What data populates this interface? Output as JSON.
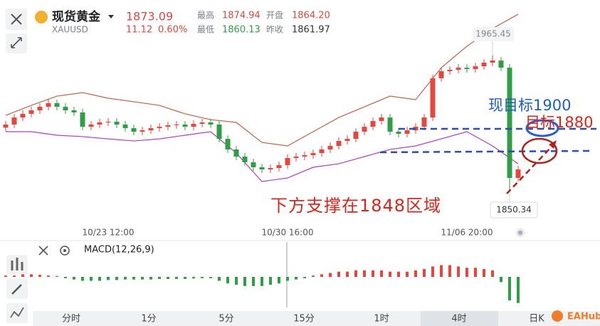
{
  "header": {
    "name": "现货黄金",
    "symbol": "XAUUSD",
    "price": "1873.09",
    "change": "11.12",
    "change_pct": "0.60%",
    "stats": [
      {
        "label": "最高",
        "value": "1874.94"
      },
      {
        "label": "开盘",
        "value": "1864.20"
      },
      {
        "label": "最低",
        "value": "1860.13"
      },
      {
        "label": "昨收",
        "value": "1861.97"
      }
    ]
  },
  "chart_data": {
    "type": "candlestick",
    "categories": [
      null,
      null,
      null,
      null,
      null,
      null,
      null,
      null,
      null,
      null,
      null,
      null,
      "10/23 12:00",
      null,
      null,
      null,
      null,
      null,
      null,
      null,
      null,
      null,
      null,
      null,
      null,
      null,
      null,
      null,
      null,
      null,
      null,
      null,
      null,
      "10/30 16:00",
      null,
      null,
      null,
      null,
      null,
      null,
      null,
      null,
      null,
      null,
      null,
      null,
      null,
      null,
      null,
      null,
      null,
      null,
      null,
      null,
      "11/06 20:00",
      null,
      null,
      null,
      null,
      null,
      null
    ],
    "open": [
      1904.0,
      1906.7,
      1912.7,
      1915.8,
      1918.8,
      1921.8,
      1924.9,
      1921.8,
      1918.8,
      1917.0,
      1904.8,
      1906.7,
      1908.5,
      1909.1,
      1906.7,
      1903.6,
      1900.6,
      1901.8,
      1903.6,
      1904.8,
      1906.1,
      1906.7,
      1904.8,
      1907.3,
      1908.5,
      1906.7,
      1894.5,
      1885.5,
      1879.4,
      1874.6,
      1870.3,
      1868.5,
      1869.7,
      1872.1,
      1878.2,
      1879.4,
      1880.6,
      1882.4,
      1885.5,
      1888.5,
      1892.7,
      1894.5,
      1900.6,
      1904.8,
      1909.7,
      1912.7,
      1900.6,
      1898.8,
      1901.8,
      1904.8,
      1912.7,
      1946.1,
      1952.1,
      1953.3,
      1955.1,
      1953.9,
      1956.3,
      1959.4,
      1961.2,
      1955.1,
      1861.2
    ],
    "high": [
      1909.7,
      1915.7,
      1918.8,
      1921.8,
      1924.8,
      1927.9,
      1927.9,
      1924.8,
      1921.8,
      1920.0,
      1909.7,
      1911.5,
      1912.1,
      1912.1,
      1909.7,
      1906.6,
      1904.8,
      1906.6,
      1907.8,
      1909.1,
      1909.7,
      1909.7,
      1910.3,
      1911.5,
      1911.5,
      1909.7,
      1897.5,
      1888.5,
      1882.4,
      1877.6,
      1873.3,
      1872.7,
      1875.1,
      1881.2,
      1882.4,
      1883.6,
      1885.4,
      1888.5,
      1891.5,
      1895.7,
      1897.5,
      1903.6,
      1907.8,
      1912.7,
      1915.7,
      1915.7,
      1903.6,
      1904.8,
      1907.8,
      1915.7,
      1949.1,
      1955.1,
      1956.3,
      1958.1,
      1958.1,
      1959.3,
      1962.4,
      1965.45,
      1964.2,
      1958.1,
      1871.5
    ],
    "low": [
      1901.0,
      1903.7,
      1909.7,
      1912.8,
      1915.8,
      1918.8,
      1918.8,
      1915.8,
      1914.0,
      1901.8,
      1901.8,
      1903.7,
      1905.5,
      1903.7,
      1900.6,
      1897.6,
      1897.6,
      1898.8,
      1900.6,
      1901.8,
      1903.1,
      1901.8,
      1901.8,
      1904.3,
      1903.7,
      1891.5,
      1882.5,
      1876.4,
      1871.6,
      1867.3,
      1865.5,
      1865.5,
      1866.7,
      1869.1,
      1875.2,
      1876.4,
      1877.6,
      1879.4,
      1882.5,
      1885.5,
      1889.7,
      1891.5,
      1897.6,
      1901.8,
      1906.7,
      1897.6,
      1895.8,
      1895.8,
      1898.8,
      1901.8,
      1909.7,
      1943.1,
      1949.1,
      1950.3,
      1950.9,
      1950.9,
      1953.3,
      1956.4,
      1952.1,
      1850.34,
      1858.2
    ],
    "close": [
      1906.7,
      1912.7,
      1915.8,
      1918.8,
      1921.8,
      1924.9,
      1921.8,
      1918.8,
      1917.0,
      1904.8,
      1906.7,
      1908.5,
      1909.1,
      1906.7,
      1903.6,
      1900.6,
      1901.8,
      1903.6,
      1904.8,
      1906.1,
      1906.7,
      1904.8,
      1907.3,
      1908.5,
      1906.7,
      1894.5,
      1885.5,
      1879.4,
      1874.6,
      1870.3,
      1868.5,
      1869.7,
      1872.1,
      1878.2,
      1879.4,
      1880.6,
      1882.4,
      1885.5,
      1888.5,
      1892.7,
      1894.5,
      1900.6,
      1904.8,
      1909.7,
      1912.7,
      1900.6,
      1898.8,
      1901.8,
      1904.8,
      1912.7,
      1946.1,
      1952.1,
      1953.3,
      1955.1,
      1953.9,
      1956.3,
      1959.4,
      1961.2,
      1955.1,
      1861.2,
      1868.5
    ],
    "up_color": "#e5463d",
    "down_color": "#2f9e44",
    "ylim": [
      1820,
      2006.7
    ],
    "bands": [
      {
        "color": "#c0634a",
        "x": [
          0,
          3,
          6,
          9,
          12,
          15,
          18,
          21,
          24,
          27,
          30,
          33,
          36,
          39,
          42,
          45,
          48,
          51,
          54,
          57,
          60
        ],
        "values": [
          1914.5,
          1923.0,
          1930.9,
          1933.9,
          1929.1,
          1926.1,
          1923.0,
          1915.8,
          1910.9,
          1908.5,
          1891.5,
          1888.5,
          1900.6,
          1912.7,
          1921.8,
          1930.9,
          1927.9,
          1955.1,
          1973.4,
          1988.5,
          2000.6
        ]
      },
      {
        "color": "#b23fc0",
        "x": [
          0,
          3,
          6,
          9,
          12,
          15,
          18,
          21,
          24,
          27,
          30,
          33,
          36,
          39,
          42,
          45,
          48,
          51,
          54,
          57,
          60
        ],
        "values": [
          1900.6,
          1900.6,
          1897.6,
          1896.4,
          1894.5,
          1892.7,
          1894.5,
          1897.6,
          1900.6,
          1882.4,
          1858.2,
          1861.2,
          1870.3,
          1873.3,
          1879.4,
          1885.5,
          1888.5,
          1894.5,
          1900.6,
          1888.5,
          1873.3
        ]
      }
    ],
    "macd": {
      "title": "MACD(12,26,9)",
      "ylim": [
        -12,
        12
      ],
      "hist": [
        0.5,
        0.5,
        1,
        1,
        0.8,
        0.5,
        0.3,
        -0.5,
        -1,
        -1.5,
        -1.5,
        -1.5,
        -1.2,
        -1.2,
        -1,
        -1,
        -1,
        -1,
        -0.8,
        -0.8,
        -0.8,
        -0.8,
        -0.6,
        -0.5,
        -0.5,
        -1.5,
        -2.5,
        -3,
        -3.5,
        -3.5,
        -3.5,
        -3,
        -2.5,
        -1.5,
        -1,
        -0.5,
        0.5,
        1,
        1.5,
        2,
        2,
        2.5,
        2.5,
        2.5,
        2.5,
        2,
        2,
        2,
        2.5,
        3,
        4,
        4.5,
        4.5,
        4,
        3.5,
        3.5,
        3,
        2.5,
        -2,
        -9,
        -10
      ]
    }
  },
  "annotations": [
    {
      "text": "现目标1900",
      "color": "#1f5fbf"
    },
    {
      "text": "目标1880",
      "color": "#d9261c"
    },
    {
      "text": "下方支撑在1848区域",
      "color": "#d9261c"
    }
  ],
  "tabs": [
    "分时",
    "1分",
    "5分",
    "15分",
    "1时",
    "4时",
    "日K"
  ],
  "active_tab": 5,
  "logo": "EAHub"
}
